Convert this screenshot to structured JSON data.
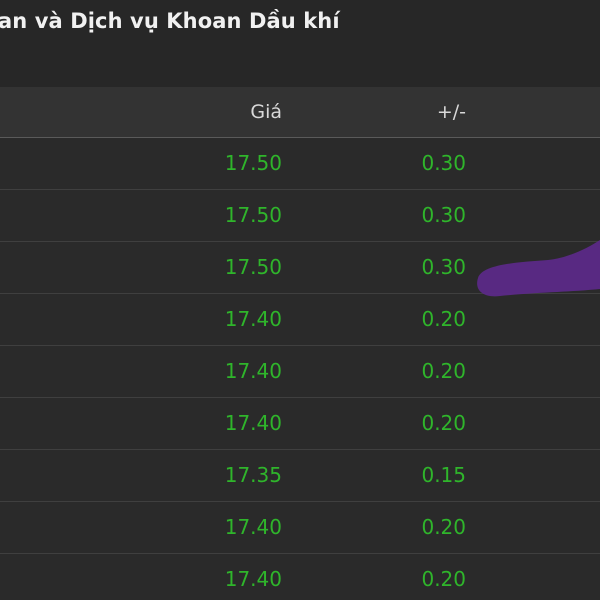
{
  "header": {
    "title": "an và Dịch vụ Khoan Dầu khí"
  },
  "table": {
    "columns": {
      "price": "Giá",
      "change": "+/-"
    },
    "rows": [
      {
        "price": "17.50",
        "change": "0.30"
      },
      {
        "price": "17.50",
        "change": "0.30"
      },
      {
        "price": "17.50",
        "change": "0.30"
      },
      {
        "price": "17.40",
        "change": "0.20"
      },
      {
        "price": "17.40",
        "change": "0.20"
      },
      {
        "price": "17.40",
        "change": "0.20"
      },
      {
        "price": "17.35",
        "change": "0.15"
      },
      {
        "price": "17.40",
        "change": "0.20"
      },
      {
        "price": "17.40",
        "change": "0.20"
      }
    ]
  },
  "colors": {
    "background": "#272727",
    "header_background": "#333333",
    "positive_value": "#2fb52b",
    "stroke_mark": "#5b2a86"
  }
}
